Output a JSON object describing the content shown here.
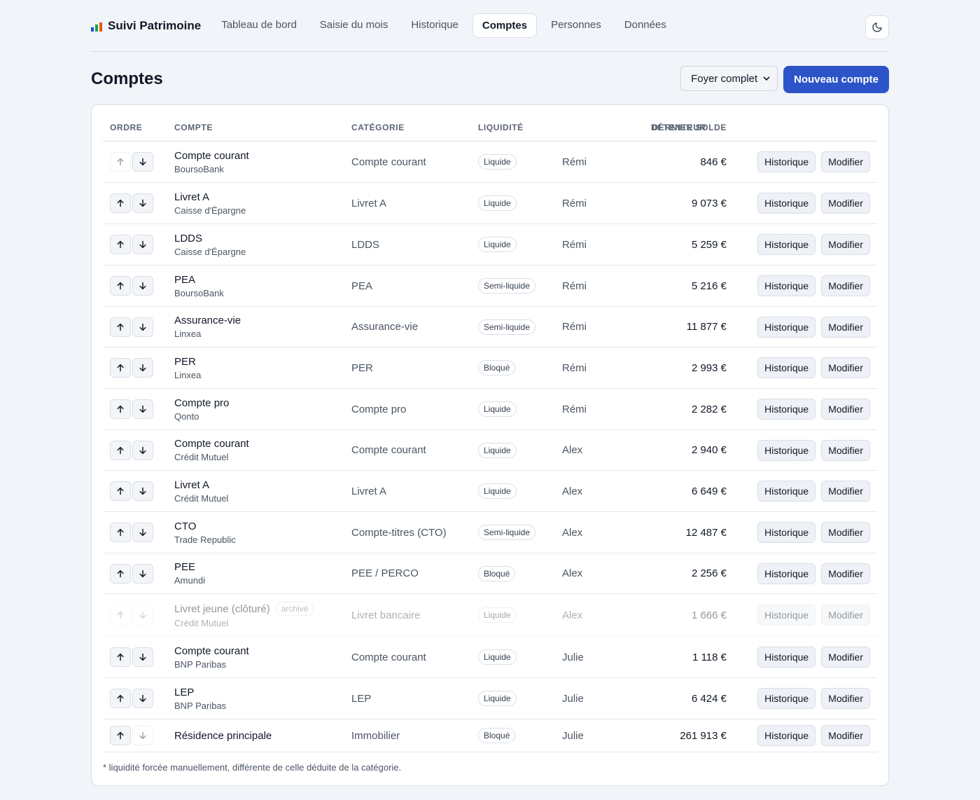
{
  "app": {
    "name": "Suivi Patrimoine",
    "brand_colors": [
      "#1f4fd1",
      "#16a34a",
      "#ea580c"
    ]
  },
  "nav": {
    "items": [
      {
        "label": "Tableau de bord",
        "active": false
      },
      {
        "label": "Saisie du mois",
        "active": false
      },
      {
        "label": "Historique",
        "active": false
      },
      {
        "label": "Comptes",
        "active": true
      },
      {
        "label": "Personnes",
        "active": false
      },
      {
        "label": "Données",
        "active": false
      }
    ],
    "theme_toggle_icon": "moon-icon"
  },
  "header": {
    "title": "Comptes",
    "filter_selected": "Foyer complet",
    "new_button": "Nouveau compte"
  },
  "table": {
    "columns": {
      "order": "ORDRE",
      "account": "COMPTE",
      "category": "CATÉGORIE",
      "liquidity": "LIQUIDITÉ",
      "holder": "DÉTENTEUR",
      "balance": "DERNIER SOLDE"
    },
    "action_history": "Historique",
    "action_edit": "Modifier",
    "rows": [
      {
        "name": "Compte courant",
        "bank": "BoursoBank",
        "category": "Compte courant",
        "liquidity": "Liquide",
        "holder": "Rémi",
        "balance": "846 €",
        "up_disabled": true,
        "down_disabled": false,
        "archived": false,
        "archive_label": ""
      },
      {
        "name": "Livret A",
        "bank": "Caisse d'Épargne",
        "category": "Livret A",
        "liquidity": "Liquide",
        "holder": "Rémi",
        "balance": "9 073 €",
        "up_disabled": false,
        "down_disabled": false,
        "archived": false,
        "archive_label": ""
      },
      {
        "name": "LDDS",
        "bank": "Caisse d'Épargne",
        "category": "LDDS",
        "liquidity": "Liquide",
        "holder": "Rémi",
        "balance": "5 259 €",
        "up_disabled": false,
        "down_disabled": false,
        "archived": false,
        "archive_label": ""
      },
      {
        "name": "PEA",
        "bank": "BoursoBank",
        "category": "PEA",
        "liquidity": "Semi-liquide",
        "holder": "Rémi",
        "balance": "5 216 €",
        "up_disabled": false,
        "down_disabled": false,
        "archived": false,
        "archive_label": ""
      },
      {
        "name": "Assurance-vie",
        "bank": "Linxea",
        "category": "Assurance-vie",
        "liquidity": "Semi-liquide",
        "holder": "Rémi",
        "balance": "11 877 €",
        "up_disabled": false,
        "down_disabled": false,
        "archived": false,
        "archive_label": ""
      },
      {
        "name": "PER",
        "bank": "Linxea",
        "category": "PER",
        "liquidity": "Bloqué",
        "holder": "Rémi",
        "balance": "2 993 €",
        "up_disabled": false,
        "down_disabled": false,
        "archived": false,
        "archive_label": ""
      },
      {
        "name": "Compte pro",
        "bank": "Qonto",
        "category": "Compte pro",
        "liquidity": "Liquide",
        "holder": "Rémi",
        "balance": "2 282 €",
        "up_disabled": false,
        "down_disabled": false,
        "archived": false,
        "archive_label": ""
      },
      {
        "name": "Compte courant",
        "bank": "Crédit Mutuel",
        "category": "Compte courant",
        "liquidity": "Liquide",
        "holder": "Alex",
        "balance": "2 940 €",
        "up_disabled": false,
        "down_disabled": false,
        "archived": false,
        "archive_label": ""
      },
      {
        "name": "Livret A",
        "bank": "Crédit Mutuel",
        "category": "Livret A",
        "liquidity": "Liquide",
        "holder": "Alex",
        "balance": "6 649 €",
        "up_disabled": false,
        "down_disabled": false,
        "archived": false,
        "archive_label": ""
      },
      {
        "name": "CTO",
        "bank": "Trade Republic",
        "category": "Compte-titres (CTO)",
        "liquidity": "Semi-liquide",
        "holder": "Alex",
        "balance": "12 487 €",
        "up_disabled": false,
        "down_disabled": false,
        "archived": false,
        "archive_label": ""
      },
      {
        "name": "PEE",
        "bank": "Amundi",
        "category": "PEE / PERCO",
        "liquidity": "Bloqué",
        "holder": "Alex",
        "balance": "2 256 €",
        "up_disabled": false,
        "down_disabled": false,
        "archived": false,
        "archive_label": ""
      },
      {
        "name": "Livret jeune (clôturé)",
        "bank": "Crédit Mutuel",
        "category": "Livret bancaire",
        "liquidity": "Liquide",
        "holder": "Alex",
        "balance": "1 666 €",
        "up_disabled": true,
        "down_disabled": true,
        "archived": true,
        "archive_label": "archivé"
      },
      {
        "name": "Compte courant",
        "bank": "BNP Paribas",
        "category": "Compte courant",
        "liquidity": "Liquide",
        "holder": "Julie",
        "balance": "1 118 €",
        "up_disabled": false,
        "down_disabled": false,
        "archived": false,
        "archive_label": ""
      },
      {
        "name": "LEP",
        "bank": "BNP Paribas",
        "category": "LEP",
        "liquidity": "Liquide",
        "holder": "Julie",
        "balance": "6 424 €",
        "up_disabled": false,
        "down_disabled": false,
        "archived": false,
        "archive_label": ""
      },
      {
        "name": "Résidence principale",
        "bank": "",
        "category": "Immobilier",
        "liquidity": "Bloqué",
        "holder": "Julie",
        "balance": "261 913 €",
        "up_disabled": false,
        "down_disabled": true,
        "archived": false,
        "archive_label": ""
      }
    ],
    "footnote": "* liquidité forcée manuellement, différente de celle déduite de la catégorie."
  }
}
